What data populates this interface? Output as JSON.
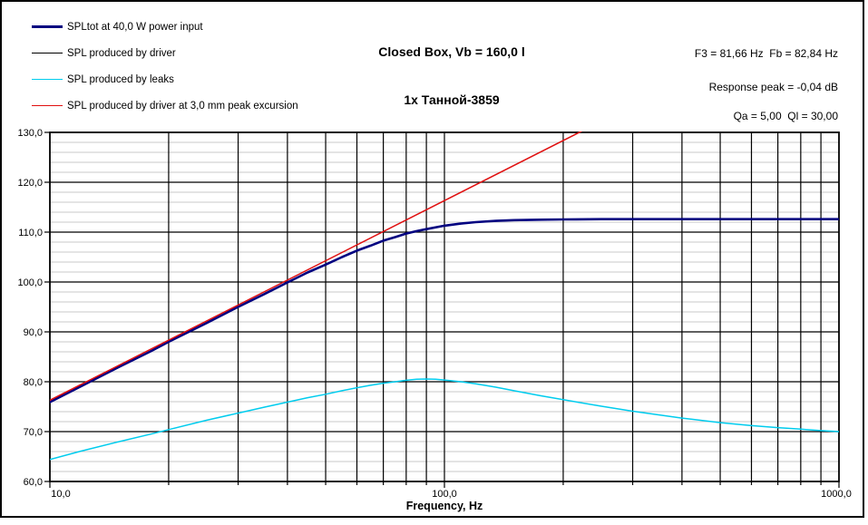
{
  "title": {
    "line1": "Closed Box, Vb = 160,0 l",
    "line2": "1x Танной-3859"
  },
  "legend": {
    "items": [
      {
        "key": "spltot",
        "label": "SPLtot at 40,0 W power input",
        "color": "#000080",
        "thickness": 3
      },
      {
        "key": "driver",
        "label": "SPL produced by driver",
        "color": "#000000",
        "thickness": 1
      },
      {
        "key": "leaks",
        "label": "SPL produced by leaks",
        "color": "#00CCEE",
        "thickness": 1.5
      },
      {
        "key": "excursion",
        "label": "SPL produced by driver at 3,0 mm peak excursion",
        "color": "#E01010",
        "thickness": 1.5
      }
    ]
  },
  "stats": {
    "f3_fb": "F3 = 81,66 Hz  Fb = 82,84 Hz",
    "response_peak": "Response peak = -0,04 dB",
    "qa_ql": "Qa = 5,00  Ql = 30,00"
  },
  "chart_data": {
    "type": "line",
    "title": "Closed Box, Vb = 160,0 l",
    "subtitle": "1x Танной-3859",
    "x_axis": {
      "label": "Frequency, Hz",
      "scale": "log",
      "min": 10,
      "max": 1000,
      "ticks": [
        {
          "value": 10,
          "label": "10,0"
        },
        {
          "value": 100,
          "label": "100,0"
        },
        {
          "value": 1000,
          "label": "1000,0"
        }
      ]
    },
    "y_axis": {
      "min": 60,
      "max": 130,
      "major_step": 10,
      "minor_step": 2,
      "ticks": [
        {
          "value": 60,
          "label": "60,0"
        },
        {
          "value": 70,
          "label": "70,0"
        },
        {
          "value": 80,
          "label": "80,0"
        },
        {
          "value": 90,
          "label": "90,0"
        },
        {
          "value": 100,
          "label": "100,0"
        },
        {
          "value": 110,
          "label": "110,0"
        },
        {
          "value": 120,
          "label": "120,0"
        },
        {
          "value": 130,
          "label": "130,0"
        }
      ]
    },
    "grid": {
      "major_color": "#000000",
      "minor_color": "#C9C9C9"
    },
    "series": [
      {
        "key": "driver",
        "name": "SPL produced by driver",
        "color": "#000000",
        "width": 1,
        "points": [
          [
            10,
            75.9
          ],
          [
            12,
            79.1
          ],
          [
            15,
            83.0
          ],
          [
            18,
            86.1
          ],
          [
            20,
            88.0
          ],
          [
            25,
            91.8
          ],
          [
            30,
            95.0
          ],
          [
            35,
            97.6
          ],
          [
            40,
            99.9
          ],
          [
            45,
            101.9
          ],
          [
            50,
            103.5
          ],
          [
            55,
            105.0
          ],
          [
            60,
            106.3
          ],
          [
            65,
            107.3
          ],
          [
            70,
            108.3
          ],
          [
            75,
            109.0
          ],
          [
            80,
            109.7
          ],
          [
            85,
            110.2
          ],
          [
            90,
            110.6
          ],
          [
            100,
            111.3
          ],
          [
            110,
            111.7
          ],
          [
            120,
            112.0
          ],
          [
            135,
            112.2
          ],
          [
            150,
            112.4
          ],
          [
            175,
            112.5
          ],
          [
            200,
            112.5
          ],
          [
            250,
            112.6
          ],
          [
            300,
            112.6
          ],
          [
            400,
            112.6
          ],
          [
            500,
            112.6
          ],
          [
            700,
            112.6
          ],
          [
            1000,
            112.6
          ]
        ]
      },
      {
        "key": "spltot",
        "name": "SPLtot at 40,0 W power input",
        "color": "#000080",
        "width": 2.6,
        "points": [
          [
            10,
            75.9
          ],
          [
            12,
            79.1
          ],
          [
            15,
            83.0
          ],
          [
            18,
            86.1
          ],
          [
            20,
            88.0
          ],
          [
            25,
            91.8
          ],
          [
            30,
            95.0
          ],
          [
            35,
            97.6
          ],
          [
            40,
            99.9
          ],
          [
            45,
            101.9
          ],
          [
            50,
            103.5
          ],
          [
            55,
            105.0
          ],
          [
            60,
            106.3
          ],
          [
            65,
            107.3
          ],
          [
            70,
            108.3
          ],
          [
            75,
            109.0
          ],
          [
            80,
            109.7
          ],
          [
            85,
            110.2
          ],
          [
            90,
            110.6
          ],
          [
            100,
            111.3
          ],
          [
            110,
            111.7
          ],
          [
            120,
            112.0
          ],
          [
            135,
            112.25
          ],
          [
            150,
            112.4
          ],
          [
            175,
            112.5
          ],
          [
            200,
            112.55
          ],
          [
            250,
            112.6
          ],
          [
            300,
            112.6
          ],
          [
            400,
            112.6
          ],
          [
            500,
            112.6
          ],
          [
            700,
            112.6
          ],
          [
            1000,
            112.6
          ]
        ]
      },
      {
        "key": "leaks",
        "name": "SPL produced by leaks",
        "color": "#00CCEE",
        "width": 1.5,
        "points": [
          [
            10,
            64.4
          ],
          [
            12,
            66.1
          ],
          [
            15,
            68.0
          ],
          [
            18,
            69.5
          ],
          [
            20,
            70.4
          ],
          [
            25,
            72.3
          ],
          [
            30,
            73.7
          ],
          [
            35,
            74.9
          ],
          [
            40,
            75.9
          ],
          [
            45,
            76.8
          ],
          [
            50,
            77.5
          ],
          [
            55,
            78.2
          ],
          [
            60,
            78.8
          ],
          [
            65,
            79.3
          ],
          [
            70,
            79.7
          ],
          [
            75,
            80.0
          ],
          [
            80,
            80.3
          ],
          [
            85,
            80.5
          ],
          [
            90,
            80.55
          ],
          [
            95,
            80.5
          ],
          [
            100,
            80.35
          ],
          [
            110,
            80.0
          ],
          [
            120,
            79.6
          ],
          [
            135,
            78.9
          ],
          [
            150,
            78.2
          ],
          [
            175,
            77.2
          ],
          [
            200,
            76.4
          ],
          [
            250,
            75.1
          ],
          [
            300,
            74.1
          ],
          [
            400,
            72.7
          ],
          [
            500,
            71.8
          ],
          [
            600,
            71.2
          ],
          [
            700,
            70.8
          ],
          [
            800,
            70.5
          ],
          [
            900,
            70.2
          ],
          [
            1000,
            70.0
          ]
        ]
      },
      {
        "key": "excursion",
        "name": "SPL produced by driver at 3,0 mm peak excursion",
        "color": "#E01010",
        "width": 1.5,
        "points": [
          [
            10,
            76.3
          ],
          [
            230,
            130.8
          ]
        ]
      }
    ]
  }
}
